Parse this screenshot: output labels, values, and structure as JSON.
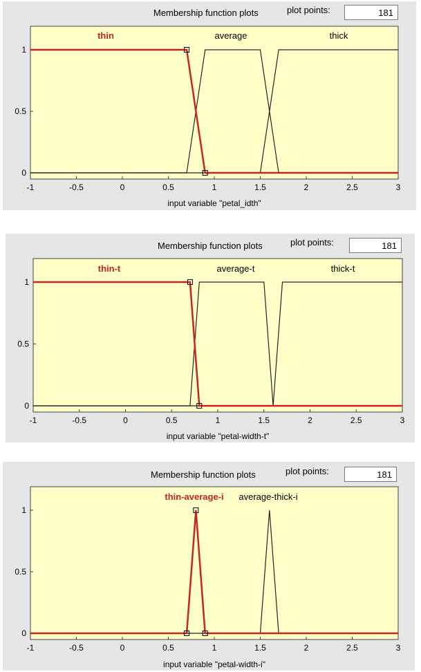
{
  "panels": [
    {
      "title": "Membership function plots",
      "plot_points_label": "plot points:",
      "plot_points_value": "181",
      "xlabel": "input variable \"petal_idth\"",
      "mf_labels": [
        {
          "text": "thin",
          "color": "#cc2222",
          "bold": true
        },
        {
          "text": "average",
          "color": "#000000",
          "bold": false
        },
        {
          "text": "thick",
          "color": "#000000",
          "bold": false
        }
      ]
    },
    {
      "title": "Membership function plots",
      "plot_points_label": "plot points:",
      "plot_points_value": "181",
      "xlabel": "input variable \"petal-width-t\"",
      "mf_labels": [
        {
          "text": "thin-t",
          "color": "#cc2222",
          "bold": true
        },
        {
          "text": "average-t",
          "color": "#000000",
          "bold": false
        },
        {
          "text": "thick-t",
          "color": "#000000",
          "bold": false
        }
      ]
    },
    {
      "title": "Membership function plots",
      "plot_points_label": "plot points:",
      "plot_points_value": "181",
      "xlabel": "input variable \"petal-width-i\"",
      "mf_labels": [
        {
          "text": "thin-average-i",
          "color": "#cc2222",
          "bold": true
        },
        {
          "text": "average-thick-i",
          "color": "#000000",
          "bold": false
        }
      ]
    }
  ],
  "chart_data": [
    {
      "type": "line",
      "xlabel": "input variable \"petal_idth\"",
      "xlim": [
        -1,
        3
      ],
      "ylim": [
        0,
        1
      ],
      "xticks": [
        "-1",
        "-0.5",
        "0",
        "0.5",
        "1",
        "1.5",
        "2",
        "2.5",
        "3"
      ],
      "yticks": [
        "0",
        "0.5",
        "1"
      ],
      "series": [
        {
          "name": "thin",
          "color": "#cc2222",
          "selected": true,
          "x": [
            -1,
            0.7,
            0.9,
            3
          ],
          "y": [
            1,
            1,
            0,
            0
          ]
        },
        {
          "name": "average",
          "color": "#222222",
          "selected": false,
          "x": [
            -1,
            0.7,
            0.9,
            1.5,
            1.7,
            3
          ],
          "y": [
            0,
            0,
            1,
            1,
            0,
            0
          ]
        },
        {
          "name": "thick",
          "color": "#222222",
          "selected": false,
          "x": [
            -1,
            1.5,
            1.7,
            3
          ],
          "y": [
            0,
            0,
            1,
            1
          ]
        }
      ]
    },
    {
      "type": "line",
      "xlabel": "input variable \"petal-width-t\"",
      "xlim": [
        -1,
        3
      ],
      "ylim": [
        0,
        1
      ],
      "xticks": [
        "-1",
        "-0.5",
        "0",
        "0.5",
        "1",
        "1.5",
        "2",
        "2.5",
        "3"
      ],
      "yticks": [
        "0",
        "0.5",
        "1"
      ],
      "series": [
        {
          "name": "thin-t",
          "color": "#cc2222",
          "selected": true,
          "x": [
            -1,
            0.7,
            0.8,
            3
          ],
          "y": [
            1,
            1,
            0,
            0
          ]
        },
        {
          "name": "average-t",
          "color": "#222222",
          "selected": false,
          "x": [
            -1,
            0.7,
            0.8,
            1.5,
            1.6,
            3
          ],
          "y": [
            0,
            0,
            1,
            1,
            0,
            0
          ]
        },
        {
          "name": "thick-t",
          "color": "#222222",
          "selected": false,
          "x": [
            -1,
            1.6,
            1.7,
            3
          ],
          "y": [
            0,
            0,
            1,
            1
          ]
        }
      ]
    },
    {
      "type": "line",
      "xlabel": "input variable \"petal-width-i\"",
      "xlim": [
        -1,
        3
      ],
      "ylim": [
        0,
        1
      ],
      "xticks": [
        "-1",
        "-0.5",
        "0",
        "0.5",
        "1",
        "1.5",
        "2",
        "2.5",
        "3"
      ],
      "yticks": [
        "0",
        "0.5",
        "1"
      ],
      "series": [
        {
          "name": "thin-average-i",
          "color": "#cc2222",
          "selected": true,
          "x": [
            -1,
            0.7,
            0.8,
            0.9,
            3
          ],
          "y": [
            0,
            0,
            1,
            0,
            0
          ]
        },
        {
          "name": "average-thick-i",
          "color": "#222222",
          "selected": false,
          "x": [
            -1,
            1.5,
            1.6,
            1.7,
            3
          ],
          "y": [
            0,
            0,
            1,
            0,
            0
          ]
        }
      ]
    }
  ]
}
